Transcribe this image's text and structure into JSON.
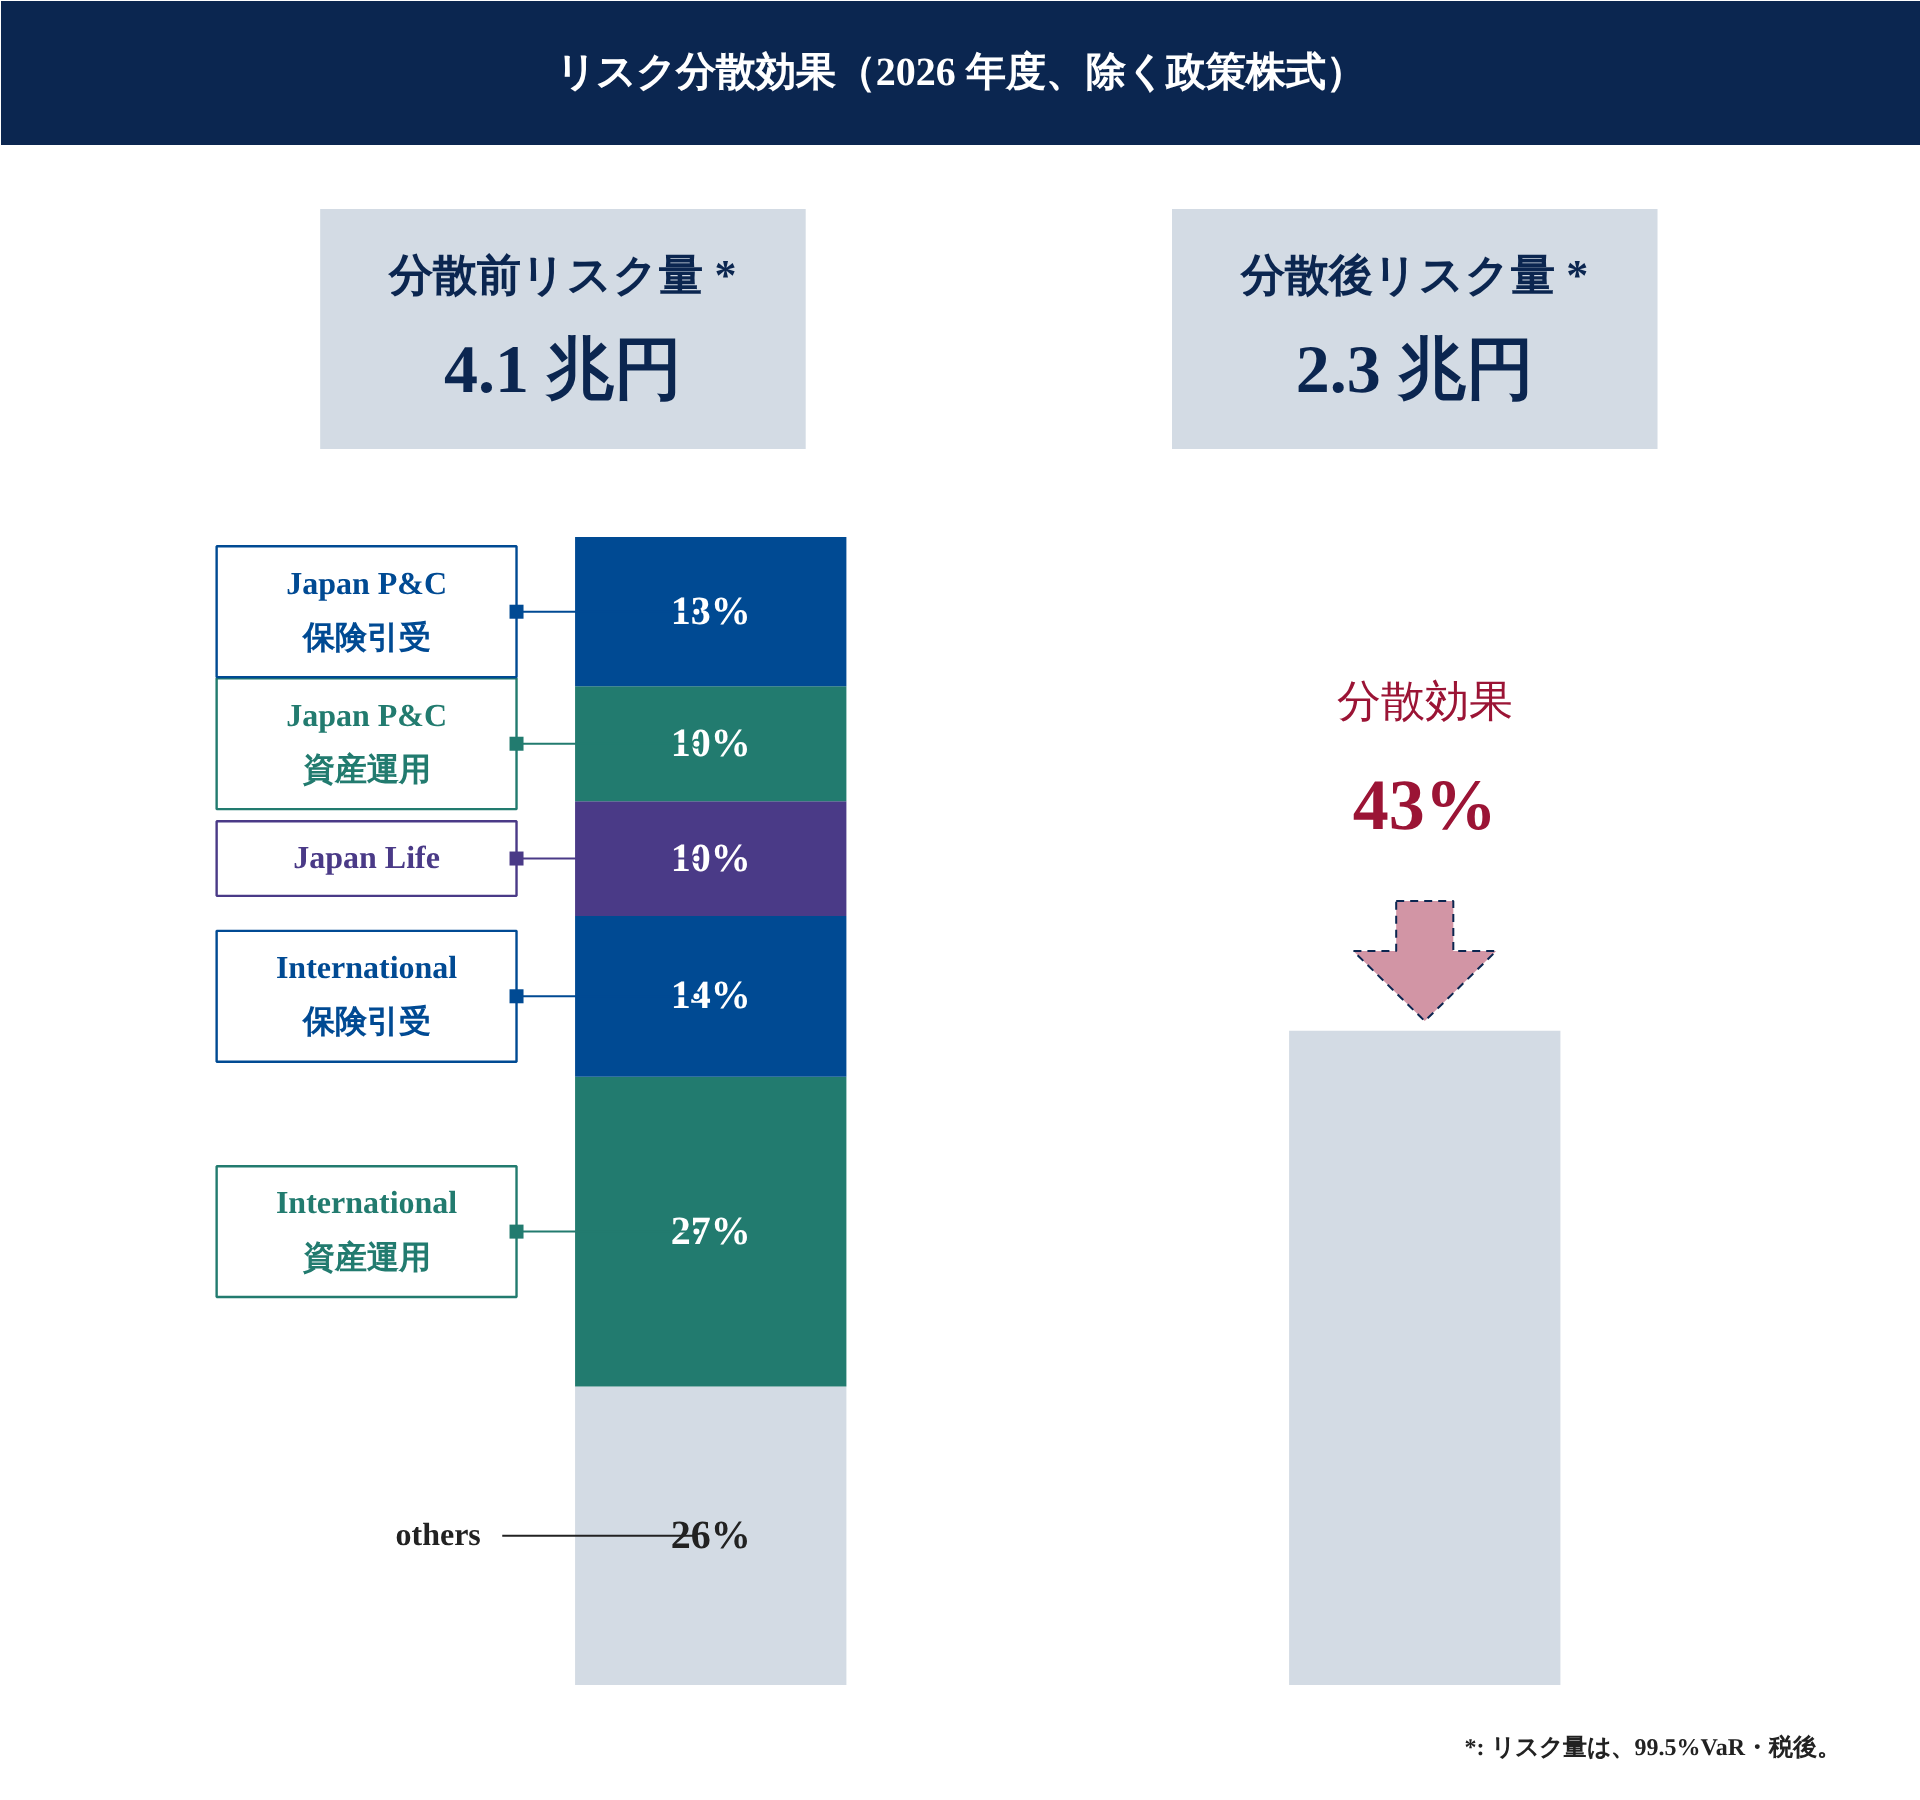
{
  "chart_data": {
    "type": "bar",
    "stacked": true,
    "title": "リスク分散効果（2026 年度、除く政策株式）",
    "categories": [
      null,
      null
    ],
    "ylim": [
      0,
      100
    ],
    "tick_labels": false,
    "grid": false,
    "legend": "left",
    "series": [
      {
        "name": "others",
        "color": "#d3dbe4",
        "values": [
          26,
          null
        ],
        "value_labels": [
          "26%",
          null
        ]
      },
      {
        "name": "International\n資産運用",
        "color": "#227b6f",
        "values": [
          27,
          null
        ],
        "value_labels": [
          "27%",
          null
        ]
      },
      {
        "name": "International\n保険引受",
        "color": "#004a93",
        "values": [
          14,
          null
        ],
        "value_labels": [
          "14%",
          null
        ]
      },
      {
        "name": "Japan Life",
        "color": "#4a3a87",
        "values": [
          10,
          null
        ],
        "value_labels": [
          "10%",
          null
        ]
      },
      {
        "name": "Japan P&C\n資産運用",
        "color": "#227b6f",
        "values": [
          10,
          null
        ],
        "value_labels": [
          "10%",
          null
        ]
      },
      {
        "name": "Japan P&C\n保険引受",
        "color": "#004a93",
        "values": [
          13,
          null
        ],
        "value_labels": [
          "13%",
          null
        ]
      },
      {
        "color": "#d3dbe4",
        "values": [
          null,
          57
        ]
      }
    ],
    "annotations": [
      "分散前リスク量 *",
      "4.1 兆円",
      "分散後リスク量 *",
      "2.3 兆円",
      "分散効果",
      "43%",
      "*: リスク量は、99.5%VaR・税後。"
    ]
  }
}
